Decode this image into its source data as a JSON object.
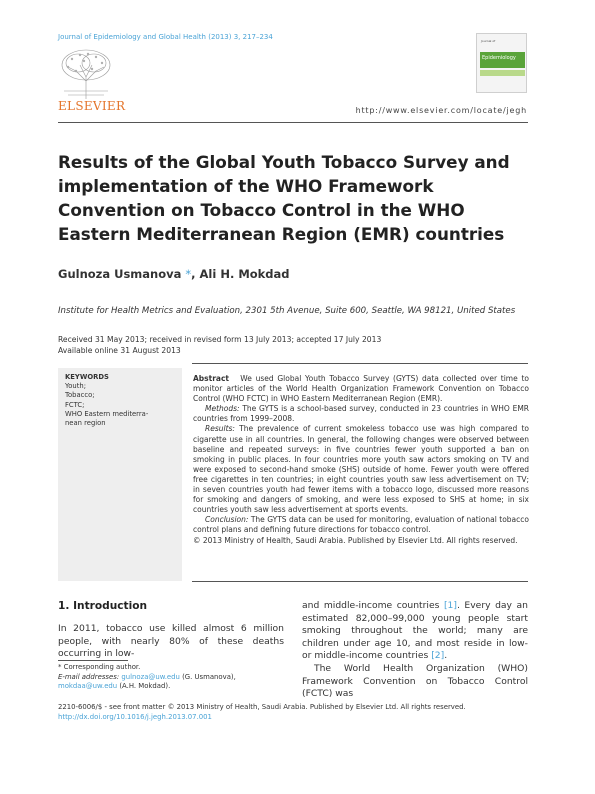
{
  "header": {
    "journal_line": "Journal of Epidemiology and Global Health (2013) 3, 217–234",
    "publisher": "ELSEVIER",
    "url": "http://www.elsevier.com/locate/jegh",
    "cover_tag": "Journal of",
    "cover_title": "Epidemiology"
  },
  "article": {
    "title": "Results of the Global Youth Tobacco Survey and implementation of the WHO Framework Convention on Tobacco Control in the WHO Eastern Mediterranean Region (EMR) countries",
    "author1": "Gulnoza Usmanova",
    "author_star": "*",
    "author2": ", Ali H. Mokdad",
    "affiliation": "Institute for Health Metrics and Evaluation, 2301 5th Avenue, Suite 600, Seattle, WA 98121, United States",
    "dates_line1": "Received 31 May 2013; received in revised form 13 July 2013; accepted 17 July 2013",
    "dates_line2": "Available online 31 August 2013"
  },
  "keywords": {
    "heading": "KEYWORDS",
    "items": [
      "Youth;",
      "Tobacco;",
      "FCTC;",
      "WHO Eastern mediterra-",
      "nean region"
    ]
  },
  "abstract": {
    "label": "Abstract",
    "intro": "We used Global Youth Tobacco Survey (GYTS) data collected over time to monitor articles of the World Health Organization Framework Convention on Tobacco Control (WHO FCTC) in WHO Eastern Mediterranean Region (EMR).",
    "methods_label": "Methods:",
    "methods": " The GYTS is a school-based survey, conducted in 23 countries in WHO EMR countries from 1999–2008.",
    "results_label": "Results:",
    "results": " The prevalence of current smokeless tobacco use was high compared to cigarette use in all countries. In general, the following changes were observed between baseline and repeated surveys: in five countries fewer youth supported a ban on smoking in public places. In four countries more youth saw actors smoking on TV and were exposed to second-hand smoke (SHS) outside of home. Fewer youth were offered free cigarettes in ten countries; in eight countries youth saw less advertisement on TV; in seven countries youth had fewer items with a tobacco logo, discussed more reasons for smoking and dangers of smoking, and were less exposed to SHS at home; in six countries youth saw less advertisement at sports events.",
    "conclusion_label": "Conclusion:",
    "conclusion": " The GYTS data can be used for monitoring, evaluation of national tobacco control plans and defining future directions for tobacco control.",
    "copyright": "© 2013 Ministry of Health, Saudi Arabia. Published by Elsevier Ltd. All rights reserved."
  },
  "intro": {
    "heading": "1. Introduction",
    "left_para": "In 2011, tobacco use killed almost 6 million people, with nearly 80% of these deaths occurring in low-",
    "right_para1_a": "and middle-income countries ",
    "right_cite1": "[1]",
    "right_para1_b": ". Every day an estimated 82,000–99,000 young people start smoking throughout the world; many are children under age 10, and most reside in low- or middle-income countries ",
    "right_cite2": "[2]",
    "right_para1_c": ".",
    "right_para2": "The World Health Organization (WHO) Framework Convention on Tobacco Control (FCTC) was"
  },
  "footnote": {
    "star_line": "* Corresponding author.",
    "email_label": "E-mail addresses: ",
    "email1": "gulnoza@uw.edu",
    "email1_who": " (G. Usmanova),",
    "email2": "mokdaa@uw.edu",
    "email2_who": " (A.H. Mokdad)."
  },
  "bottom": {
    "issn_line": "2210-6006/$ - see front matter © 2013 Ministry of Health, Saudi Arabia. Published by Elsevier Ltd. All rights reserved.",
    "doi": "http://dx.doi.org/10.1016/j.jegh.2013.07.001"
  }
}
